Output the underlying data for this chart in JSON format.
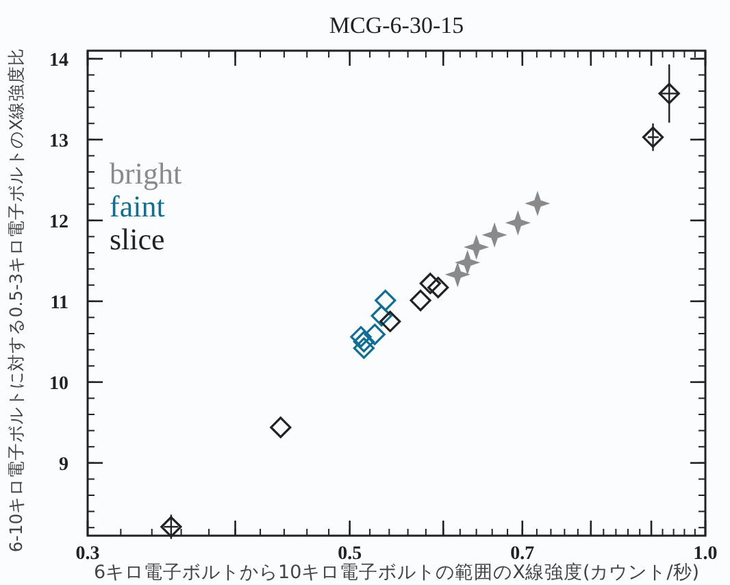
{
  "chart_data": {
    "type": "scatter",
    "title": "MCG-6-30-15",
    "xlabel": "6キロ電子ボルトから10キロ電子ボルトの範囲のX線強度(カウント/秒)",
    "ylabel": "6-10キロ電子ボルトに対する0.5-3キロ電子ボルトのX線強度比",
    "log": "x",
    "xlim": [
      0.3,
      1.0
    ],
    "ylim": [
      8.1,
      14.1
    ],
    "xticks": [
      {
        "value": 0.3,
        "label": "0.3"
      },
      {
        "value": 0.4,
        "label": null
      },
      {
        "value": 0.5,
        "label": "0.5"
      },
      {
        "value": 0.6,
        "label": null
      },
      {
        "value": 0.7,
        "label": "0.7"
      },
      {
        "value": 0.8,
        "label": null
      },
      {
        "value": 0.9,
        "label": null
      },
      {
        "value": 1.0,
        "label": "1.0"
      }
    ],
    "yticks": [
      9,
      10,
      11,
      12,
      13,
      14
    ],
    "legend": "left",
    "grid": false,
    "series": [
      {
        "name": "bright",
        "color": "#8a8a8a",
        "marker": "cross",
        "x": [
          0.617,
          0.629,
          0.64,
          0.663,
          0.694,
          0.721
        ],
        "values": [
          11.33,
          11.48,
          11.67,
          11.82,
          11.97,
          12.21
        ]
      },
      {
        "name": "faint",
        "color": "#0e6e96",
        "marker": "diamond",
        "x": [
          0.536,
          0.532,
          0.525,
          0.511,
          0.514,
          0.514
        ],
        "values": [
          11.01,
          10.82,
          10.59,
          10.56,
          10.5,
          10.42
        ]
      },
      {
        "name": "slice",
        "color": "#222222",
        "marker": "diamond",
        "x": [
          0.353,
          0.437,
          0.541,
          0.574,
          0.585,
          0.594,
          0.903,
          0.932
        ],
        "values": [
          8.21,
          9.44,
          10.75,
          11.01,
          11.22,
          11.17,
          13.03,
          13.57
        ],
        "errors": [
          0.15,
          null,
          null,
          null,
          null,
          null,
          0.17,
          0.36
        ],
        "xerrors": [
          [
            0.348,
            0.358
          ],
          null,
          null,
          null,
          null,
          null,
          [
            0.894,
            0.913
          ],
          [
            0.913,
            0.951
          ]
        ]
      }
    ]
  }
}
